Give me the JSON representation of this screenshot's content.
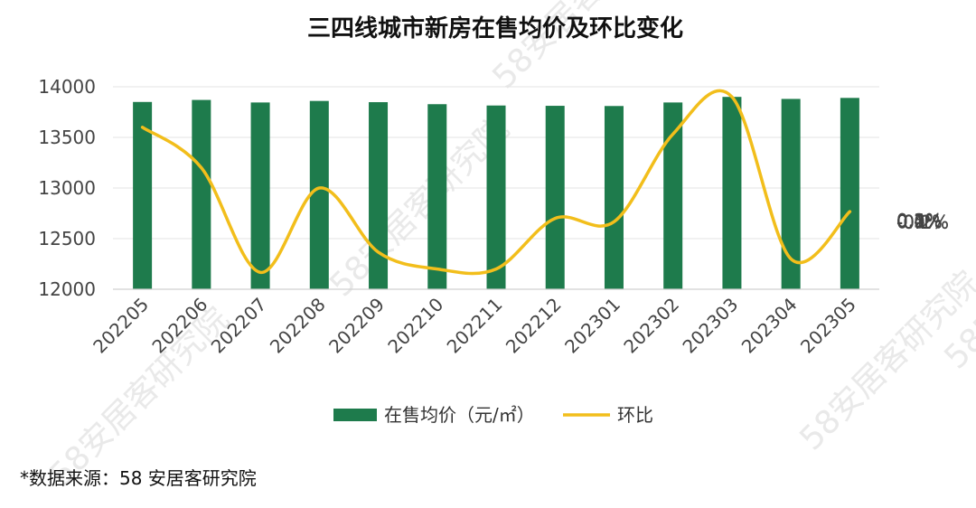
{
  "chart_data": {
    "type": "bar+line",
    "title": "三四线城市新房在售均价及环比变化",
    "categories": [
      "202205",
      "202206",
      "202207",
      "202208",
      "202209",
      "202210",
      "202211",
      "202212",
      "202301",
      "202302",
      "202303",
      "202304",
      "202305"
    ],
    "series": [
      {
        "name": "在售均价（元/㎡）",
        "type": "bar",
        "axis": "left",
        "color": "#1e7b4c",
        "values": [
          13850,
          13870,
          13845,
          13860,
          13848,
          13828,
          13815,
          13812,
          13810,
          13845,
          13900,
          13880,
          13890
        ]
      },
      {
        "name": "环比",
        "type": "line",
        "axis": "right",
        "color": "#f2be1b",
        "values": [
          0.28,
          0.16,
          -0.15,
          0.1,
          -0.09,
          -0.14,
          -0.14,
          0.01,
          0.0,
          0.26,
          0.37,
          -0.11,
          0.03
        ]
      }
    ],
    "left_axis": {
      "ylim": [
        12000,
        14000
      ],
      "ticks": [
        "12000",
        "12500",
        "13000",
        "13500",
        "14000"
      ]
    },
    "right_axis": {
      "ylim": [
        -0.2,
        0.4
      ],
      "ticks": [
        "-0.2%",
        "-0.1%",
        "0.0%",
        "0.1%",
        "0.2%",
        "0.3%",
        "0.4%"
      ]
    },
    "legend_position": "bottom-center"
  },
  "source_note": "*数据来源：58 安居客研究院",
  "watermark_text": "58安居客研究院"
}
